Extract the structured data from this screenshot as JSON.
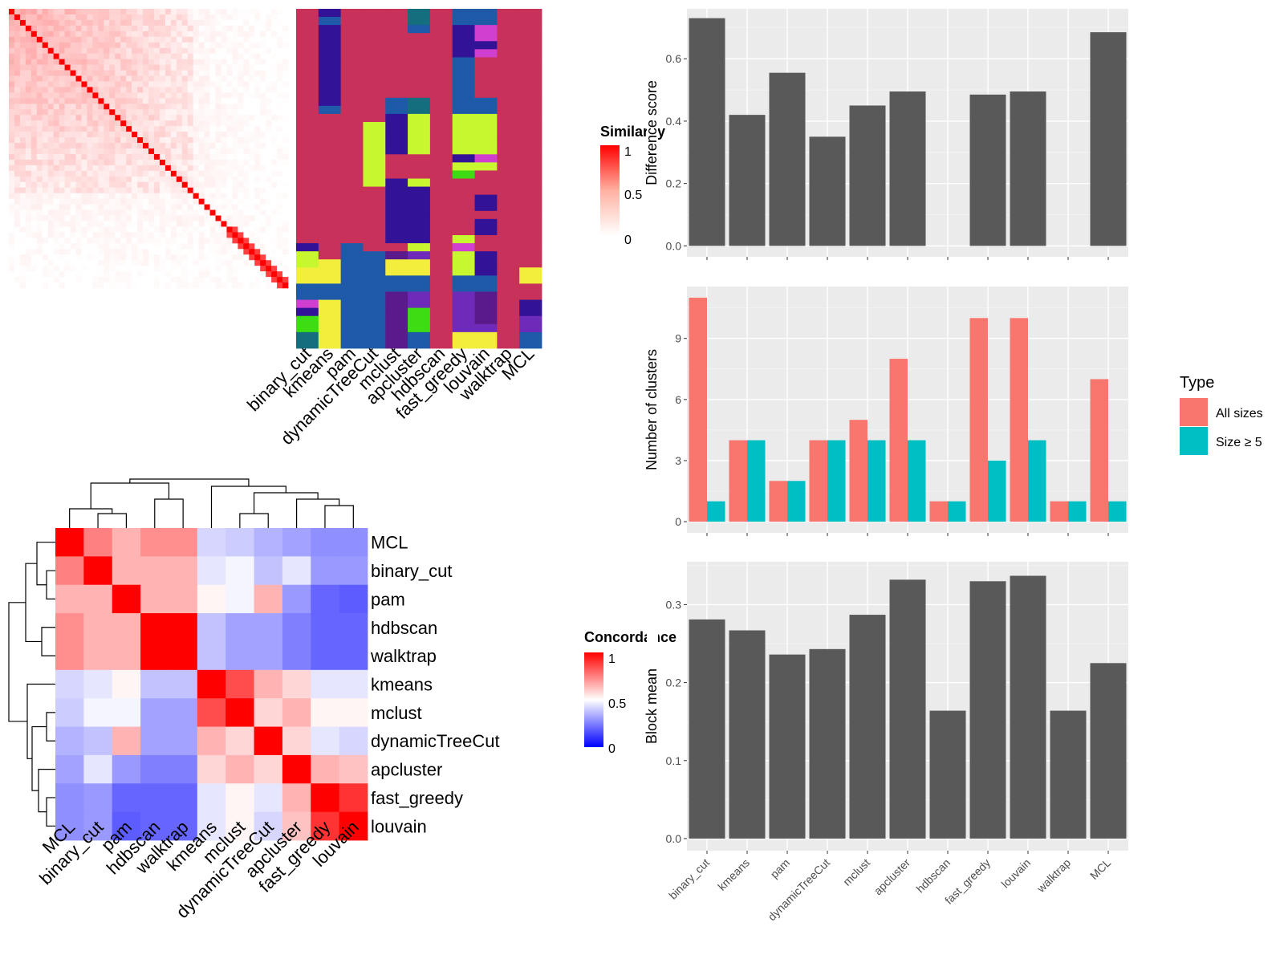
{
  "chart_data": [
    {
      "type": "heatmap",
      "name": "similarity-matrix",
      "legend": {
        "title": "Similarity",
        "breaks": [
          "1",
          "0.5",
          "0"
        ],
        "colors": [
          "#ff0000",
          "#ffffff"
        ]
      }
    },
    {
      "type": "heatmap",
      "name": "cluster-membership",
      "columns": [
        "binary_cut",
        "kmeans",
        "pam",
        "dynamicTreeCut",
        "mclust",
        "apcluster",
        "hdbscan",
        "fast_greedy",
        "louvain",
        "walktrap",
        "MCL"
      ]
    },
    {
      "type": "heatmap",
      "name": "concordance",
      "legend": {
        "title": "Concordance",
        "breaks": [
          "1",
          "0.5",
          "0"
        ],
        "colors": [
          "#0000ff",
          "#ffffff",
          "#ff0000"
        ]
      },
      "rows": [
        "MCL",
        "binary_cut",
        "pam",
        "hdbscan",
        "walktrap",
        "kmeans",
        "mclust",
        "dynamicTreeCut",
        "apcluster",
        "fast_greedy",
        "louvain"
      ],
      "columns": [
        "MCL",
        "binary_cut",
        "pam",
        "hdbscan",
        "walktrap",
        "kmeans",
        "mclust",
        "dynamicTreeCut",
        "apcluster",
        "fast_greedy",
        "louvain"
      ],
      "values": [
        [
          1.0,
          0.75,
          0.65,
          0.72,
          0.72,
          0.42,
          0.4,
          0.35,
          0.32,
          0.28,
          0.28
        ],
        [
          0.75,
          1.0,
          0.65,
          0.65,
          0.65,
          0.45,
          0.48,
          0.38,
          0.45,
          0.3,
          0.3
        ],
        [
          0.65,
          0.65,
          1.0,
          0.65,
          0.65,
          0.52,
          0.48,
          0.65,
          0.3,
          0.2,
          0.18
        ],
        [
          0.72,
          0.65,
          0.65,
          1.0,
          1.0,
          0.38,
          0.32,
          0.32,
          0.25,
          0.2,
          0.2
        ],
        [
          0.72,
          0.65,
          0.65,
          1.0,
          1.0,
          0.38,
          0.32,
          0.32,
          0.25,
          0.2,
          0.2
        ],
        [
          0.42,
          0.45,
          0.52,
          0.38,
          0.38,
          1.0,
          0.85,
          0.65,
          0.58,
          0.45,
          0.45
        ],
        [
          0.4,
          0.48,
          0.48,
          0.32,
          0.32,
          0.85,
          1.0,
          0.58,
          0.65,
          0.52,
          0.52
        ],
        [
          0.35,
          0.38,
          0.65,
          0.32,
          0.32,
          0.65,
          0.58,
          1.0,
          0.58,
          0.45,
          0.42
        ],
        [
          0.32,
          0.45,
          0.3,
          0.25,
          0.25,
          0.58,
          0.65,
          0.58,
          1.0,
          0.65,
          0.62
        ],
        [
          0.28,
          0.3,
          0.2,
          0.2,
          0.2,
          0.45,
          0.52,
          0.45,
          0.65,
          1.0,
          0.9
        ],
        [
          0.28,
          0.3,
          0.18,
          0.2,
          0.2,
          0.45,
          0.52,
          0.42,
          0.62,
          0.9,
          1.0
        ]
      ]
    },
    {
      "type": "bar",
      "name": "difference-score",
      "categories": [
        "binary_cut",
        "kmeans",
        "pam",
        "dynamicTreeCut",
        "mclust",
        "apcluster",
        "hdbscan",
        "fast_greedy",
        "louvain",
        "walktrap",
        "MCL"
      ],
      "values": [
        0.73,
        0.42,
        0.555,
        0.35,
        0.45,
        0.495,
        null,
        0.485,
        0.495,
        null,
        0.685
      ],
      "ylabel": "Difference score",
      "ylim": [
        -0.035,
        0.76
      ],
      "yticks": [
        0.0,
        0.2,
        0.4,
        0.6
      ],
      "ytick_labels": [
        "0.0",
        "0.2",
        "0.4",
        "0.6"
      ],
      "color": "#595959"
    },
    {
      "type": "bar",
      "name": "number-of-clusters",
      "categories": [
        "binary_cut",
        "kmeans",
        "pam",
        "dynamicTreeCut",
        "mclust",
        "apcluster",
        "hdbscan",
        "fast_greedy",
        "louvain",
        "walktrap",
        "MCL"
      ],
      "series": [
        {
          "name": "All sizes",
          "values": [
            11,
            4,
            2,
            4,
            5,
            8,
            1,
            10,
            10,
            1,
            7
          ],
          "color": "#f8766d"
        },
        {
          "name": "Size ≥ 5",
          "values": [
            1,
            4,
            2,
            4,
            4,
            4,
            1,
            3,
            4,
            1,
            1
          ],
          "color": "#00bfc4"
        }
      ],
      "ylabel": "Number of clusters",
      "ylim": [
        -0.55,
        11.55
      ],
      "yticks": [
        0,
        3,
        6,
        9
      ],
      "ytick_labels": [
        "0",
        "3",
        "6",
        "9"
      ],
      "legend": {
        "title": "Type",
        "position": "right"
      }
    },
    {
      "type": "bar",
      "name": "block-mean",
      "categories": [
        "binary_cut",
        "kmeans",
        "pam",
        "dynamicTreeCut",
        "mclust",
        "apcluster",
        "hdbscan",
        "fast_greedy",
        "louvain",
        "walktrap",
        "MCL"
      ],
      "values": [
        0.281,
        0.267,
        0.236,
        0.243,
        0.287,
        0.332,
        0.164,
        0.33,
        0.337,
        0.164,
        0.225
      ],
      "ylabel": "Block mean",
      "ylim": [
        -0.0155,
        0.355
      ],
      "yticks": [
        0.0,
        0.1,
        0.2,
        0.3
      ],
      "ytick_labels": [
        "0.0",
        "0.1",
        "0.2",
        "0.3"
      ],
      "color": "#595959"
    }
  ]
}
